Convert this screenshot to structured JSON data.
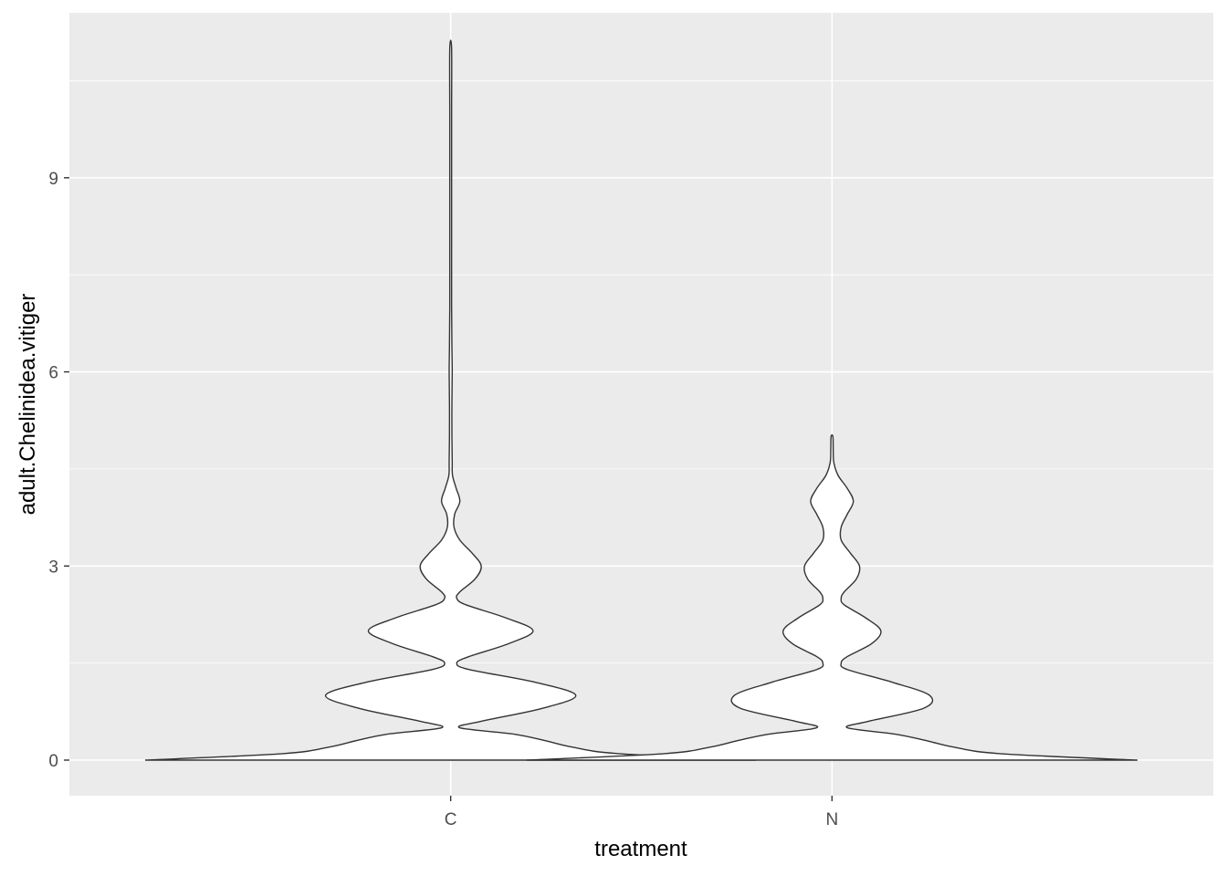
{
  "chart_data": {
    "type": "violin",
    "xlabel": "treatment",
    "ylabel": "adult.Chelinidea.vitiger",
    "categories": [
      "C",
      "N"
    ],
    "y_ticks": [
      0,
      3,
      6,
      9
    ],
    "ylim": [
      -0.55,
      11.55
    ],
    "grid": "on",
    "colors": {
      "panel": "#ebebeb",
      "grid": "#ffffff",
      "violin_fill": "#ffffff",
      "violin_stroke": "#333333"
    },
    "violins": [
      {
        "category": "C",
        "y_range": [
          0,
          11
        ],
        "density_profile": [
          [
            0,
            1.0
          ],
          [
            0.1,
            0.55
          ],
          [
            0.2,
            0.4
          ],
          [
            0.3,
            0.31
          ],
          [
            0.4,
            0.21
          ],
          [
            0.5,
            0.03
          ],
          [
            0.6,
            0.1
          ],
          [
            0.8,
            0.3
          ],
          [
            1.0,
            0.41
          ],
          [
            1.2,
            0.28
          ],
          [
            1.4,
            0.06
          ],
          [
            1.5,
            0.02
          ],
          [
            1.6,
            0.06
          ],
          [
            1.8,
            0.19
          ],
          [
            2.0,
            0.27
          ],
          [
            2.2,
            0.18
          ],
          [
            2.4,
            0.05
          ],
          [
            2.5,
            0.02
          ],
          [
            2.6,
            0.03
          ],
          [
            2.8,
            0.08
          ],
          [
            3.0,
            0.1
          ],
          [
            3.2,
            0.07
          ],
          [
            3.4,
            0.03
          ],
          [
            3.6,
            0.011
          ],
          [
            3.8,
            0.013
          ],
          [
            4.0,
            0.03
          ],
          [
            4.2,
            0.018
          ],
          [
            4.4,
            0.006
          ],
          [
            4.6,
            0.005
          ],
          [
            5.0,
            0.004
          ],
          [
            5.5,
            0.004
          ],
          [
            6.0,
            0.005
          ],
          [
            6.4,
            0.004
          ],
          [
            7.0,
            0.003
          ],
          [
            8.0,
            0.003
          ],
          [
            9.0,
            0.003
          ],
          [
            10.0,
            0.003
          ],
          [
            11.0,
            0.003
          ]
        ]
      },
      {
        "category": "N",
        "y_range": [
          0,
          5
        ],
        "density_profile": [
          [
            0,
            1.0
          ],
          [
            0.1,
            0.55
          ],
          [
            0.2,
            0.4
          ],
          [
            0.3,
            0.31
          ],
          [
            0.4,
            0.21
          ],
          [
            0.5,
            0.05
          ],
          [
            0.6,
            0.12
          ],
          [
            0.8,
            0.3
          ],
          [
            1.0,
            0.32
          ],
          [
            1.2,
            0.2
          ],
          [
            1.4,
            0.05
          ],
          [
            1.5,
            0.03
          ],
          [
            1.6,
            0.05
          ],
          [
            1.8,
            0.13
          ],
          [
            2.0,
            0.16
          ],
          [
            2.2,
            0.11
          ],
          [
            2.4,
            0.04
          ],
          [
            2.5,
            0.03
          ],
          [
            2.6,
            0.04
          ],
          [
            2.8,
            0.08
          ],
          [
            3.0,
            0.09
          ],
          [
            3.2,
            0.06
          ],
          [
            3.4,
            0.03
          ],
          [
            3.6,
            0.03
          ],
          [
            3.8,
            0.05
          ],
          [
            4.0,
            0.07
          ],
          [
            4.2,
            0.05
          ],
          [
            4.4,
            0.02
          ],
          [
            4.6,
            0.006
          ],
          [
            4.8,
            0.004
          ],
          [
            5.0,
            0.003
          ]
        ]
      }
    ]
  }
}
